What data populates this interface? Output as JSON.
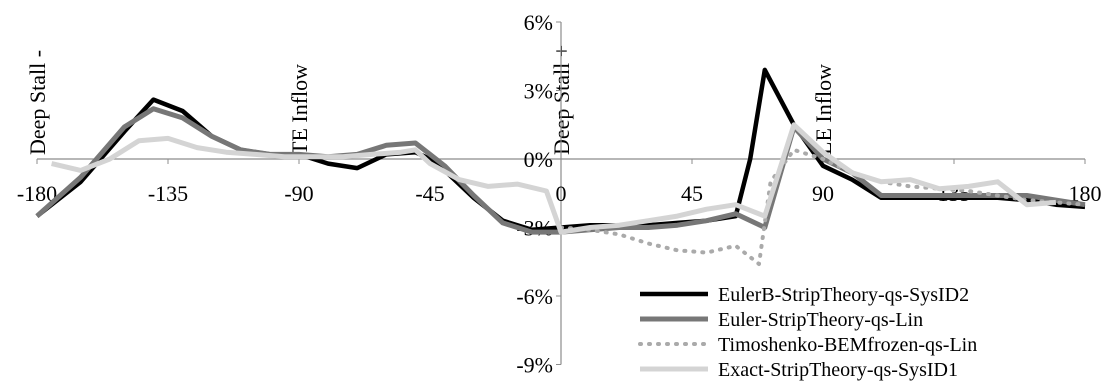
{
  "chart_data": {
    "type": "line",
    "title": "",
    "xlabel": "",
    "ylabel": "",
    "xlim": [
      -180,
      180
    ],
    "ylim": [
      -0.09,
      0.06
    ],
    "x_ticks": [
      -180,
      -135,
      -90,
      -45,
      0,
      45,
      90,
      135,
      180
    ],
    "x_tick_labels": [
      "-180",
      "-135",
      "-90",
      "-45",
      "0",
      "45",
      "90",
      "135",
      "180"
    ],
    "y_ticks": [
      0.06,
      0.03,
      0.0,
      -0.03,
      -0.06,
      -0.09
    ],
    "y_tick_labels": [
      "6%",
      "3%",
      "0%",
      "-3%",
      "-6%",
      "-9%"
    ],
    "grid": false,
    "legend_position": "bottom-right",
    "region_labels": [
      {
        "x": -180,
        "text": "Deep Stall -"
      },
      {
        "x": -90,
        "text": "TE Inflow"
      },
      {
        "x": 0,
        "text": "Deep Stall +"
      },
      {
        "x": 90,
        "text": "LE Inflow"
      }
    ],
    "series": [
      {
        "name": "EulerB-StripTheory-qs-SysID2",
        "color": "#000000",
        "style": "solid",
        "x": [
          -180,
          -165,
          -150,
          -140,
          -130,
          -120,
          -110,
          -100,
          -90,
          -80,
          -70,
          -60,
          -50,
          -45,
          -40,
          -30,
          -20,
          -10,
          0,
          10,
          20,
          30,
          40,
          50,
          60,
          65,
          70,
          80,
          90,
          100,
          110,
          120,
          130,
          140,
          150,
          160,
          170,
          180
        ],
        "y": [
          -0.025,
          -0.01,
          0.012,
          0.026,
          0.021,
          0.01,
          0.004,
          0.002,
          0.002,
          -0.002,
          -0.004,
          0.002,
          0.003,
          0.0,
          -0.005,
          -0.017,
          -0.027,
          -0.031,
          -0.03,
          -0.029,
          -0.029,
          -0.029,
          -0.028,
          -0.027,
          -0.025,
          0.0,
          0.039,
          0.015,
          -0.003,
          -0.009,
          -0.017,
          -0.017,
          -0.017,
          -0.017,
          -0.017,
          -0.018,
          -0.02,
          -0.021
        ]
      },
      {
        "name": "Euler-StripTheory-qs-Lin",
        "color": "#777777",
        "style": "solid",
        "x": [
          -180,
          -165,
          -150,
          -140,
          -130,
          -120,
          -110,
          -100,
          -90,
          -80,
          -70,
          -60,
          -50,
          -45,
          -40,
          -30,
          -20,
          -10,
          0,
          10,
          20,
          30,
          40,
          50,
          60,
          70,
          80,
          90,
          100,
          110,
          120,
          130,
          140,
          150,
          160,
          170,
          180
        ],
        "y": [
          -0.025,
          -0.008,
          0.014,
          0.022,
          0.018,
          0.01,
          0.004,
          0.002,
          0.002,
          0.001,
          0.002,
          0.006,
          0.007,
          0.002,
          -0.003,
          -0.016,
          -0.028,
          -0.032,
          -0.032,
          -0.031,
          -0.03,
          -0.03,
          -0.029,
          -0.027,
          -0.024,
          -0.03,
          0.014,
          0.0,
          -0.006,
          -0.016,
          -0.016,
          -0.016,
          -0.016,
          -0.016,
          -0.016,
          -0.018,
          -0.02
        ]
      },
      {
        "name": "Timoshenko-BEMfrozen-qs-Lin",
        "color": "#aaaaaa",
        "style": "dotted",
        "x": [
          0,
          10,
          20,
          30,
          40,
          50,
          60,
          68,
          72,
          80,
          90,
          100,
          110,
          120,
          130,
          140,
          150,
          160,
          170,
          180
        ],
        "y": [
          -0.03,
          -0.031,
          -0.033,
          -0.037,
          -0.04,
          -0.041,
          -0.038,
          -0.046,
          -0.01,
          0.004,
          0.0,
          -0.006,
          -0.01,
          -0.012,
          -0.013,
          -0.014,
          -0.016,
          -0.018,
          -0.019,
          -0.02
        ]
      },
      {
        "name": "Exact-StripTheory-qs-SysID1",
        "color": "#d4d4d4",
        "style": "solid",
        "x": [
          -175,
          -165,
          -155,
          -145,
          -135,
          -125,
          -115,
          -105,
          -95,
          -85,
          -75,
          -65,
          -55,
          -50,
          -45,
          -35,
          -25,
          -15,
          -5,
          0,
          10,
          20,
          30,
          40,
          50,
          60,
          70,
          80,
          90,
          100,
          110,
          120,
          130,
          140,
          150,
          160,
          170
        ],
        "y": [
          -0.002,
          -0.005,
          0.0,
          0.008,
          0.009,
          0.005,
          0.003,
          0.002,
          0.001,
          0.001,
          0.001,
          0.002,
          0.003,
          0.004,
          -0.002,
          -0.009,
          -0.012,
          -0.011,
          -0.014,
          -0.032,
          -0.03,
          -0.029,
          -0.027,
          -0.025,
          -0.022,
          -0.02,
          -0.025,
          0.015,
          0.003,
          -0.006,
          -0.01,
          -0.009,
          -0.013,
          -0.012,
          -0.01,
          -0.02,
          -0.019
        ]
      }
    ]
  }
}
